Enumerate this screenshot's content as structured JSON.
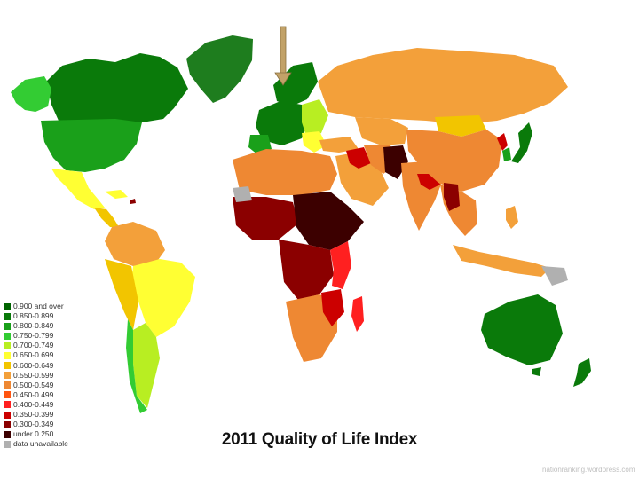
{
  "title": "2011 Quality of Life Index",
  "credit": "nationranking.wordpress.com",
  "legend": [
    {
      "label": "0.900 and over",
      "color": "#006400"
    },
    {
      "label": "0.850-0.899",
      "color": "#0a7a0a"
    },
    {
      "label": "0.800-0.849",
      "color": "#1aa01a"
    },
    {
      "label": "0.750-0.799",
      "color": "#33cc33"
    },
    {
      "label": "0.700-0.749",
      "color": "#b8ee22"
    },
    {
      "label": "0.650-0.699",
      "color": "#ffff33"
    },
    {
      "label": "0.600-0.649",
      "color": "#f2c500"
    },
    {
      "label": "0.550-0.599",
      "color": "#f3a03a"
    },
    {
      "label": "0.500-0.549",
      "color": "#ee8833"
    },
    {
      "label": "0.450-0.499",
      "color": "#ff5511"
    },
    {
      "label": "0.400-0.449",
      "color": "#ff2020"
    },
    {
      "label": "0.350-0.399",
      "color": "#cc0000"
    },
    {
      "label": "0.300-0.349",
      "color": "#8b0000"
    },
    {
      "label": "under 0.250",
      "color": "#3c0000"
    },
    {
      "label": "data unavailable",
      "color": "#b0b0b0"
    }
  ],
  "markers": {
    "arrow_color": "#c2a268"
  }
}
